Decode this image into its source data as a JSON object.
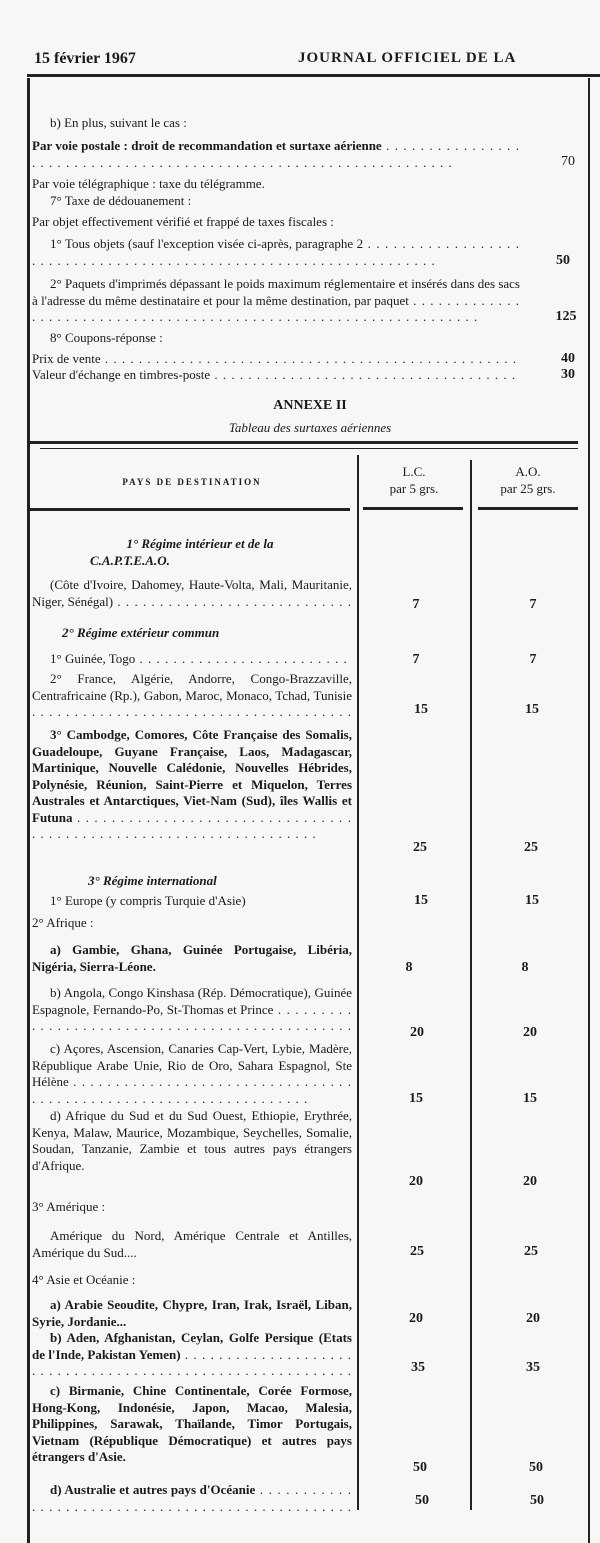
{
  "header": {
    "date": "15 février 1967",
    "title": "JOURNAL OFFICIEL DE LA"
  },
  "top": {
    "b_heading": "b) En plus, suivant le cas :",
    "postale": "Par voie postale : droit de recommandation et surtaxe aérienne",
    "postale_value": "70",
    "telegraphique": "Par voie télégraphique : taxe du télégramme.",
    "dedouanement": "7° Taxe de dédouanement :",
    "par_objet": "Par objet effectivement vérifié et frappé de taxes fiscales :",
    "tous_objets": "1° Tous objets (sauf l'exception visée ci-après, paragraphe 2",
    "tous_objets_value": "50",
    "paquets": "2° Paquets d'imprimés dépassant le poids maximum réglementaire et insérés dans des sacs à l'adresse du même destinataire et pour la même destination, par paquet",
    "paquets_value": "125",
    "coupons": "8° Coupons-réponse :",
    "prix_vente": "Prix de vente",
    "prix_vente_value": "40",
    "valeur_echange": "Valeur d'échange en timbres-poste",
    "valeur_echange_value": "30"
  },
  "annexe": {
    "title": "ANNEXE II",
    "subtitle": "Tableau des surtaxes aériennes"
  },
  "table": {
    "columns": [
      "PAYS DE DESTINATION",
      "L.C.\npar 5 grs.",
      "A.O.\npar 25 grs."
    ],
    "col_lc_1": "L.C.",
    "col_lc_2": "par 5 grs.",
    "col_ao_1": "A.O.",
    "col_ao_2": "par 25 grs.",
    "rows": [
      {
        "text": "1° Régime intérieur et de la C.A.P.T.E.A.O."
      },
      {
        "text": "(Côte d'Ivoire, Dahomey, Haute-Volta, Mali, Mauritanie, Niger, Sénégal)",
        "lc": "7",
        "ao": "7"
      },
      {
        "text": "2° Régime extérieur commun"
      },
      {
        "text": "1° Guinée, Togo",
        "lc": "7",
        "ao": "7"
      },
      {
        "text": "2° France, Algérie, Andorre, Congo-Brazzaville, Centrafricaine (Rp.), Gabon, Maroc, Monaco, Tchad, Tunisie",
        "lc": "15",
        "ao": "15"
      },
      {
        "text": "3° Cambodge, Comores, Côte Française des Somalis, Guadeloupe, Guyane Française, Laos, Madagascar, Martinique, Nouvelle Calédonie, Nouvelles Hébrides, Polynésie, Réunion, Saint-Pierre et Miquelon, Terres Australes et Antarctiques, Viet-Nam (Sud), îles Wallis et Futuna",
        "lc": "25",
        "ao": "25"
      },
      {
        "text": "3° Régime international"
      },
      {
        "text": "1° Europe (y compris Turquie d'Asie)",
        "lc": "15",
        "ao": "15"
      },
      {
        "text": "2° Afrique :"
      },
      {
        "text": "a) Gambie, Ghana, Guinée Portugaise, Libéria, Nigéria, Sierra-Léone.",
        "lc": "8",
        "ao": "8"
      },
      {
        "text": "b) Angola, Congo Kinshasa (Rép. Démocratique), Guinée Espagnole, Fernando-Po, St-Thomas et Prince",
        "lc": "20",
        "ao": "20"
      },
      {
        "text": "c) Açores, Ascension, Canaries Cap-Vert, Lybie, Madère, République Arabe Unie, Rio de Oro, Sahara Espagnol, Ste Hélène",
        "lc": "15",
        "ao": "15"
      },
      {
        "text": "d) Afrique du Sud et du Sud Ouest, Ethiopie, Erythrée, Kenya, Malaw, Maurice, Mozambique, Seychelles, Somalie, Soudan, Tanzanie, Zambie et tous autres pays étrangers d'Afrique.",
        "lc": "20",
        "ao": "20"
      },
      {
        "text": "3° Amérique :"
      },
      {
        "text": "Amérique du Nord, Amérique Centrale et Antilles, Amérique du Sud....",
        "lc": "25",
        "ao": "25"
      },
      {
        "text": "4° Asie et Océanie :"
      },
      {
        "text": "a) Arabie Seoudite, Chypre, Iran, Irak, Israël, Liban, Syrie, Jordanie...",
        "lc": "20",
        "ao": "20"
      },
      {
        "text": "b) Aden, Afghanistan, Ceylan, Golfe Persique (Etats de l'Inde, Pakistan Yemen)",
        "lc": "35",
        "ao": "35"
      },
      {
        "text": "c) Birmanie, Chine Continentale, Corée Formose, Hong-Kong, Indonésie, Japon, Macao, Malesia, Philippines, Sarawak, Thaïlande, Timor Portugais, Vietnam (République Démocratique) et autres pays étrangers d'Asie.",
        "lc": "50",
        "ao": "50"
      },
      {
        "text": "d) Australie et autres pays d'Océanie",
        "lc": "50",
        "ao": "50"
      }
    ]
  }
}
